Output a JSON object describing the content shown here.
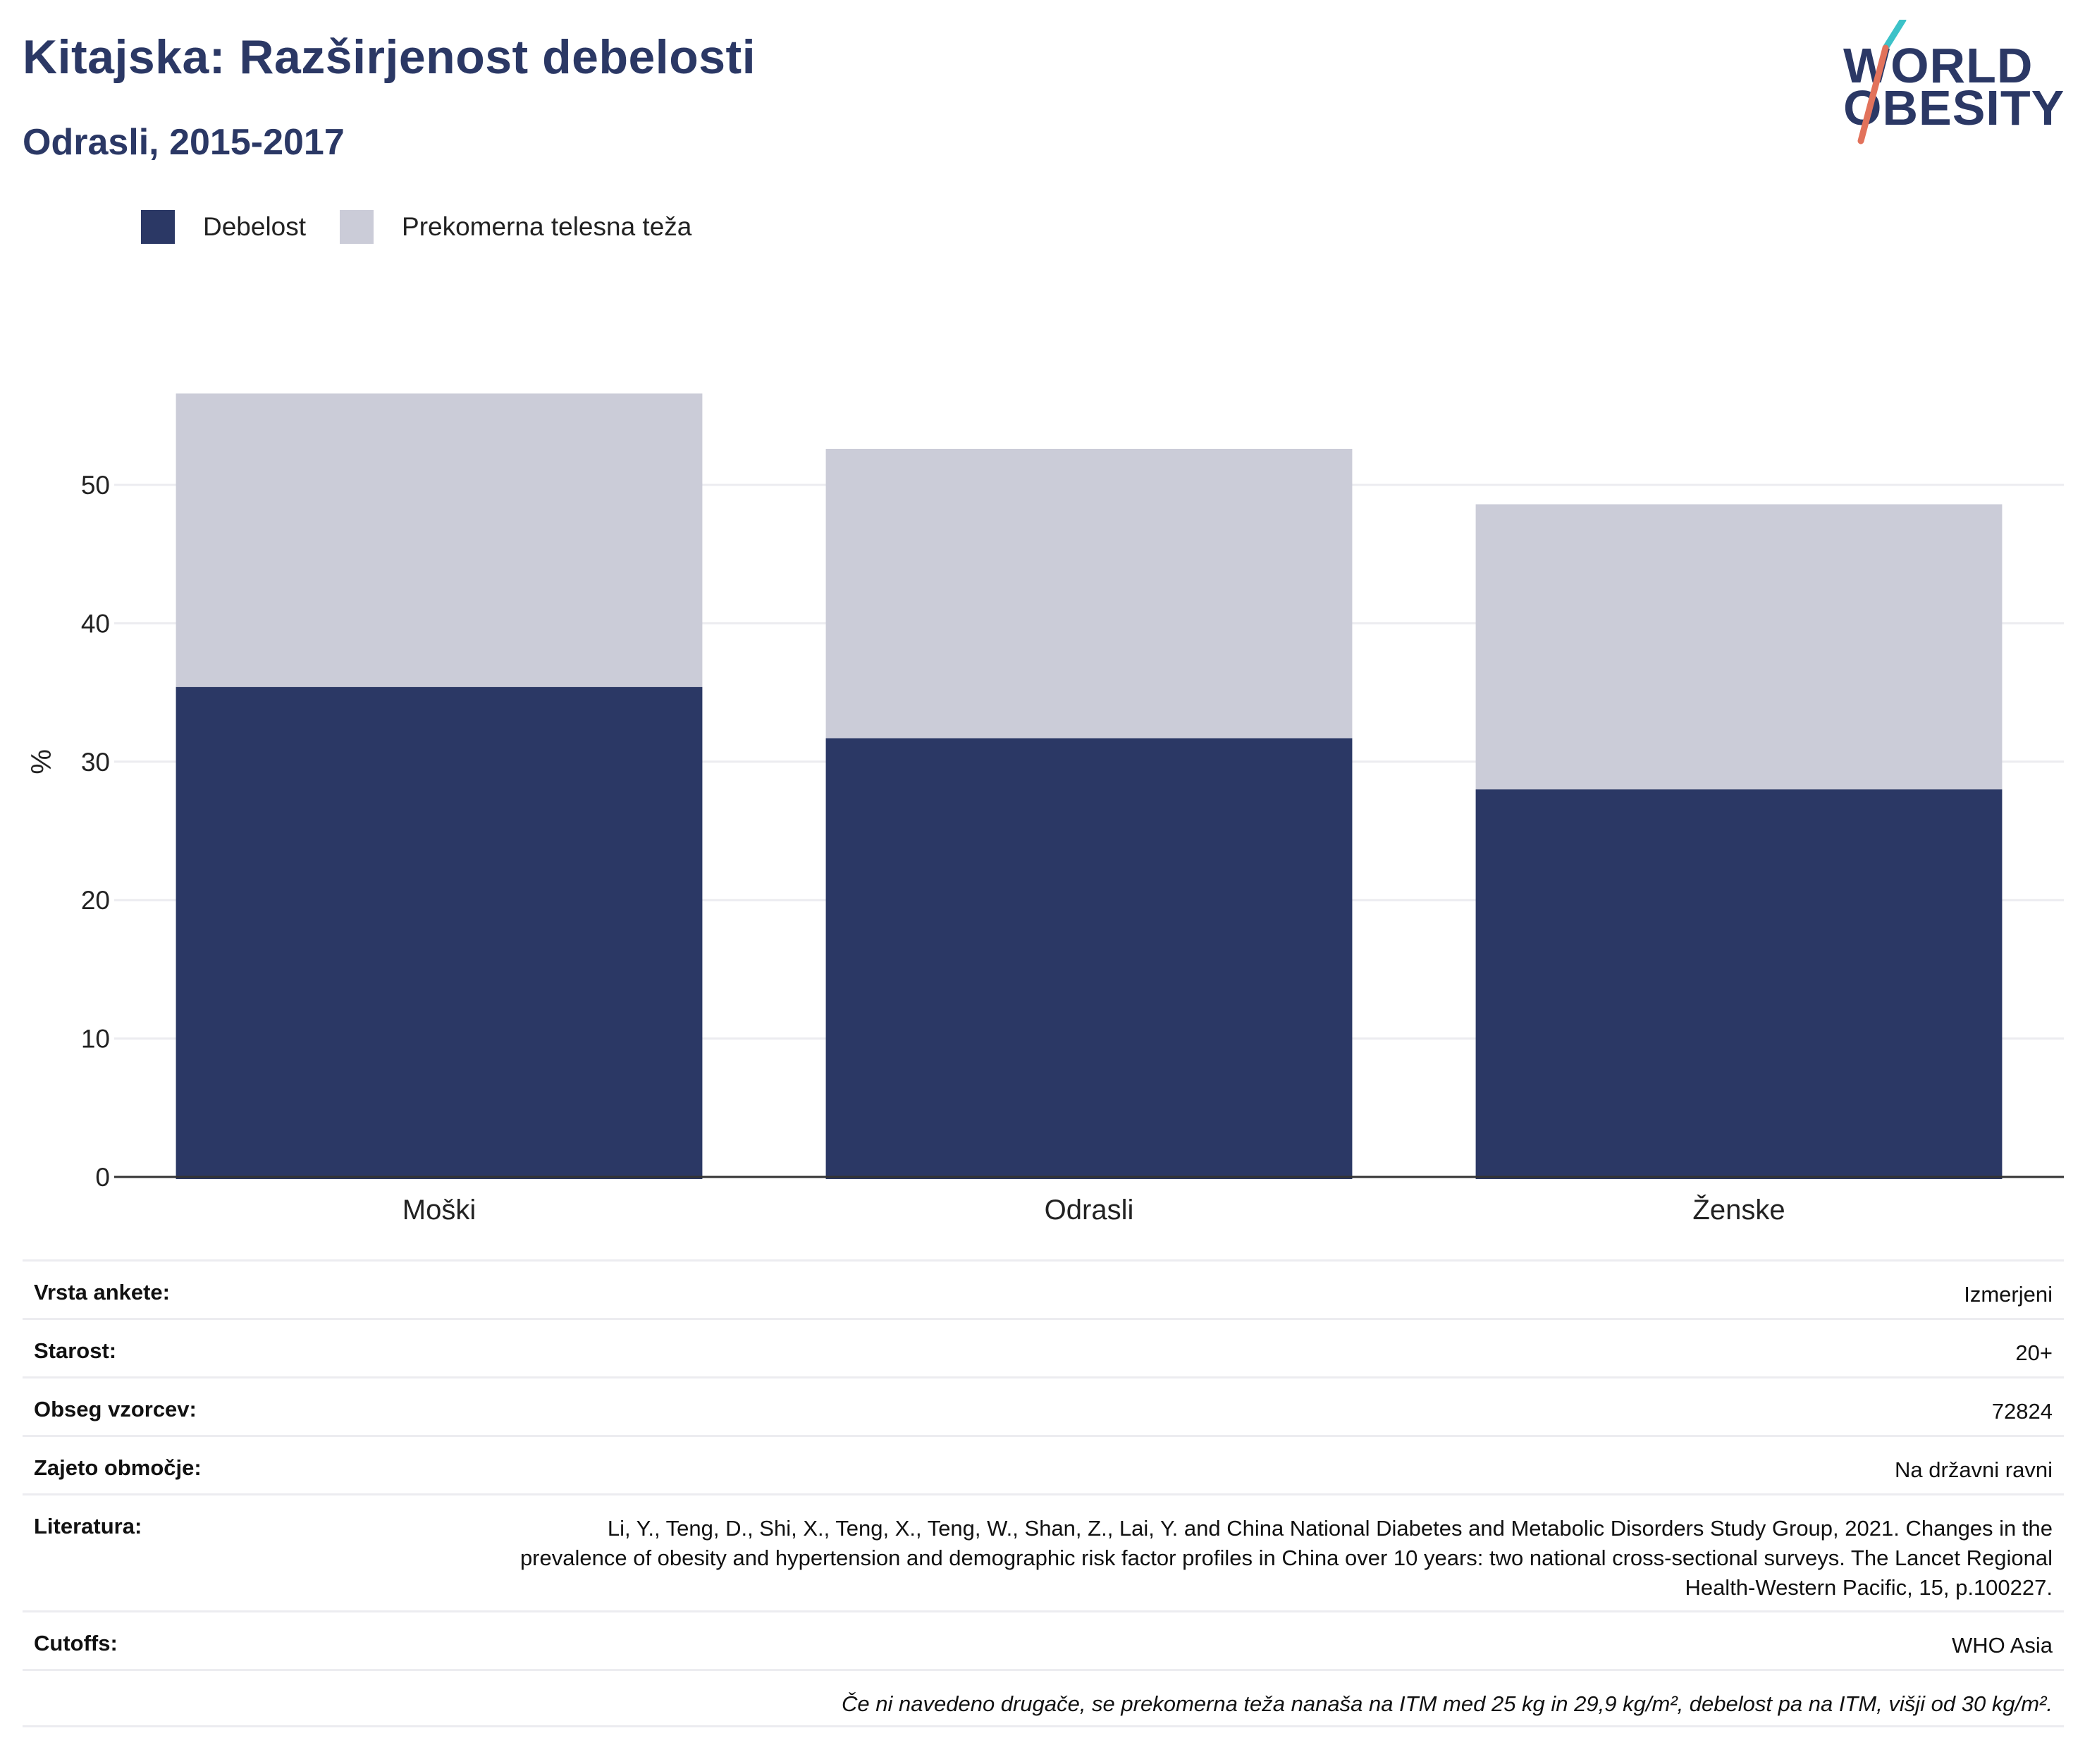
{
  "header": {
    "title": "Kitajska: Razširjenost debelosti",
    "subtitle": "Odrasli, 2015-2017"
  },
  "logo": {
    "line1": "WORLD",
    "line2": "OBESITY"
  },
  "colors": {
    "obesity": "#2b3865",
    "overweight": "#cbccd8",
    "teal": "#3cc2c8",
    "coral": "#e2725b"
  },
  "legend": [
    {
      "label": "Debelost",
      "color": "#2b3865"
    },
    {
      "label": "Prekomerna telesna teža",
      "color": "#cbccd8"
    }
  ],
  "chart_data": {
    "type": "bar",
    "stacked": true,
    "categories": [
      "Moški",
      "Odrasli",
      "Ženske"
    ],
    "series": [
      {
        "name": "Debelost",
        "values": [
          35.4,
          31.7,
          28.0
        ]
      },
      {
        "name": "Prekomerna telesna teža",
        "values": [
          21.2,
          20.9,
          20.6
        ]
      }
    ],
    "ylabel": "%",
    "yticks": [
      0,
      10,
      20,
      30,
      40,
      50
    ],
    "ylim": [
      0,
      60
    ],
    "grid": true,
    "legend_position": "top-left"
  },
  "info": [
    {
      "key": "Vrsta ankete:",
      "value": "Izmerjeni"
    },
    {
      "key": "Starost:",
      "value": "20+"
    },
    {
      "key": "Obseg vzorcev:",
      "value": "72824"
    },
    {
      "key": "Zajeto območje:",
      "value": "Na državni ravni"
    },
    {
      "key": "Literatura:",
      "value": "Li, Y., Teng, D., Shi, X., Teng, X., Teng, W., Shan, Z., Lai, Y. and China National Diabetes and Metabolic Disorders Study Group, 2021. Changes in the prevalence of obesity and hypertension and demographic risk factor profiles in China over 10 years: two national cross-sectional surveys. The Lancet Regional Health-Western Pacific, 15, p.100227."
    },
    {
      "key": "Cutoffs:",
      "value": "WHO Asia"
    }
  ],
  "note": "Če ni navedeno drugače, se prekomerna teža nanaša na ITM med 25 kg in 29,9 kg/m², debelost pa na ITM, višji od 30 kg/m²."
}
